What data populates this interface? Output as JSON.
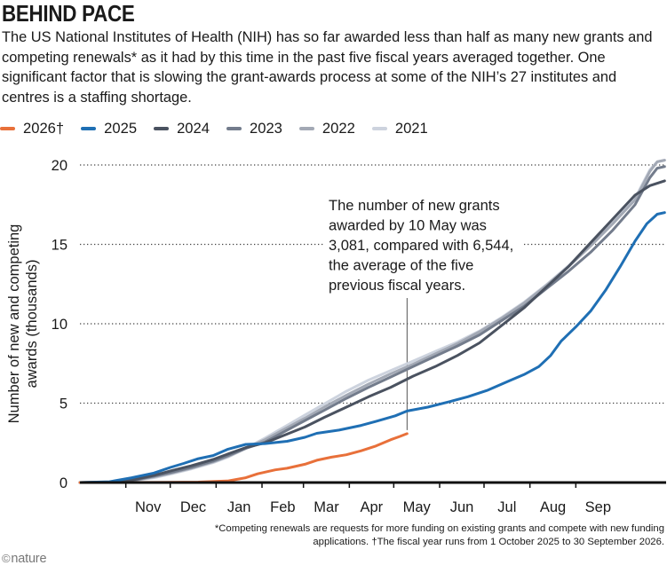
{
  "header": {
    "title": "BEHIND PACE",
    "subtitle": "The US National Institutes of Health (NIH) has so far awarded less than half as many new grants and competing renewals* as it had by this time in the past five fiscal years averaged together. One significant factor that is slowing the grant-awards process at some of the NIH’s 27 institutes and centres is a staffing shortage."
  },
  "footer": {
    "footnote": "*Competing renewals are requests for more funding on existing grants and compete with new funding applications. †The fiscal year runs from 1 October 2025 to 30 September 2026.",
    "logo_symbol": "©",
    "logo_text": "nature"
  },
  "chart_data": {
    "type": "line",
    "title": "BEHIND PACE",
    "ylabel": "Number of new and competing awards (thousands)",
    "xlabel": "",
    "x_tick_labels": [
      "Nov",
      "Dec",
      "Jan",
      "Feb",
      "Mar",
      "Apr",
      "May",
      "Jun",
      "Jul",
      "Aug",
      "Sep"
    ],
    "ylim": [
      0,
      20
    ],
    "y_ticks": [
      0,
      5,
      10,
      15,
      20
    ],
    "grid": "dotted horizontal",
    "legend_position": "top-left",
    "x_note": "x values are days since 1 October of each fiscal year",
    "annotation": {
      "text": "The number of new grants awarded by 10 May was 3,081, compared with 6,544, the average of the five previous fiscal years.",
      "x": 221,
      "y": 3.081
    },
    "series": [
      {
        "name": "2026†",
        "color": "#e8703a",
        "points": [
          [
            0,
            0
          ],
          [
            31,
            0
          ],
          [
            60,
            0.01
          ],
          [
            80,
            0.03
          ],
          [
            100,
            0.1
          ],
          [
            112,
            0.3
          ],
          [
            120,
            0.55
          ],
          [
            132,
            0.8
          ],
          [
            140,
            0.9
          ],
          [
            152,
            1.15
          ],
          [
            160,
            1.4
          ],
          [
            170,
            1.6
          ],
          [
            180,
            1.75
          ],
          [
            190,
            2.0
          ],
          [
            200,
            2.3
          ],
          [
            210,
            2.7
          ],
          [
            216,
            2.9
          ],
          [
            221,
            3.081
          ]
        ]
      },
      {
        "name": "2025",
        "color": "#1f6fb4",
        "points": [
          [
            0,
            0
          ],
          [
            20,
            0.05
          ],
          [
            35,
            0.3
          ],
          [
            50,
            0.6
          ],
          [
            61,
            0.95
          ],
          [
            70,
            1.2
          ],
          [
            80,
            1.5
          ],
          [
            90,
            1.7
          ],
          [
            100,
            2.1
          ],
          [
            112,
            2.4
          ],
          [
            125,
            2.45
          ],
          [
            140,
            2.6
          ],
          [
            152,
            2.85
          ],
          [
            160,
            3.1
          ],
          [
            175,
            3.3
          ],
          [
            190,
            3.6
          ],
          [
            200,
            3.85
          ],
          [
            213,
            4.2
          ],
          [
            221,
            4.5
          ],
          [
            235,
            4.75
          ],
          [
            250,
            5.1
          ],
          [
            262,
            5.4
          ],
          [
            275,
            5.8
          ],
          [
            290,
            6.4
          ],
          [
            300,
            6.8
          ],
          [
            310,
            7.3
          ],
          [
            318,
            8.0
          ],
          [
            325,
            8.9
          ],
          [
            335,
            9.8
          ],
          [
            345,
            10.8
          ],
          [
            355,
            12.1
          ],
          [
            365,
            13.6
          ],
          [
            375,
            15.2
          ],
          [
            383,
            16.3
          ],
          [
            390,
            16.9
          ],
          [
            395,
            17.0
          ]
        ]
      },
      {
        "name": "2024",
        "color": "#4a5260",
        "points": [
          [
            0,
            0
          ],
          [
            20,
            0.02
          ],
          [
            35,
            0.15
          ],
          [
            50,
            0.45
          ],
          [
            62,
            0.75
          ],
          [
            75,
            1.05
          ],
          [
            90,
            1.45
          ],
          [
            100,
            1.8
          ],
          [
            112,
            2.2
          ],
          [
            125,
            2.5
          ],
          [
            140,
            3.05
          ],
          [
            152,
            3.5
          ],
          [
            165,
            4.1
          ],
          [
            180,
            4.75
          ],
          [
            195,
            5.4
          ],
          [
            210,
            6.0
          ],
          [
            225,
            6.7
          ],
          [
            240,
            7.3
          ],
          [
            255,
            8.0
          ],
          [
            270,
            8.8
          ],
          [
            285,
            9.9
          ],
          [
            300,
            11.0
          ],
          [
            315,
            12.3
          ],
          [
            330,
            13.6
          ],
          [
            345,
            15.1
          ],
          [
            360,
            16.6
          ],
          [
            375,
            18.1
          ],
          [
            385,
            18.7
          ],
          [
            395,
            19.0
          ]
        ]
      },
      {
        "name": "2023",
        "color": "#737c8c",
        "points": [
          [
            0,
            0
          ],
          [
            20,
            0.02
          ],
          [
            35,
            0.12
          ],
          [
            50,
            0.4
          ],
          [
            62,
            0.65
          ],
          [
            75,
            0.95
          ],
          [
            90,
            1.35
          ],
          [
            100,
            1.7
          ],
          [
            112,
            2.15
          ],
          [
            125,
            2.55
          ],
          [
            140,
            3.3
          ],
          [
            152,
            3.9
          ],
          [
            165,
            4.55
          ],
          [
            180,
            5.3
          ],
          [
            195,
            6.0
          ],
          [
            210,
            6.65
          ],
          [
            225,
            7.3
          ],
          [
            240,
            7.95
          ],
          [
            255,
            8.6
          ],
          [
            270,
            9.3
          ],
          [
            285,
            10.2
          ],
          [
            300,
            11.1
          ],
          [
            315,
            12.2
          ],
          [
            330,
            13.3
          ],
          [
            345,
            14.5
          ],
          [
            360,
            15.9
          ],
          [
            375,
            17.5
          ],
          [
            385,
            19.2
          ],
          [
            390,
            19.8
          ],
          [
            395,
            19.9
          ]
        ]
      },
      {
        "name": "2022",
        "color": "#a3a9b5",
        "points": [
          [
            0,
            0
          ],
          [
            20,
            0.02
          ],
          [
            35,
            0.1
          ],
          [
            50,
            0.35
          ],
          [
            62,
            0.6
          ],
          [
            75,
            0.9
          ],
          [
            90,
            1.3
          ],
          [
            100,
            1.65
          ],
          [
            112,
            2.15
          ],
          [
            125,
            2.7
          ],
          [
            140,
            3.45
          ],
          [
            152,
            4.05
          ],
          [
            165,
            4.75
          ],
          [
            180,
            5.5
          ],
          [
            195,
            6.2
          ],
          [
            210,
            6.85
          ],
          [
            225,
            7.45
          ],
          [
            240,
            8.1
          ],
          [
            255,
            8.75
          ],
          [
            270,
            9.5
          ],
          [
            285,
            10.35
          ],
          [
            300,
            11.3
          ],
          [
            315,
            12.4
          ],
          [
            330,
            13.6
          ],
          [
            345,
            14.9
          ],
          [
            360,
            16.3
          ],
          [
            375,
            17.8
          ],
          [
            385,
            19.6
          ],
          [
            390,
            20.2
          ],
          [
            395,
            20.3
          ]
        ]
      },
      {
        "name": "2021",
        "color": "#cdd3de",
        "points": [
          [
            0,
            0
          ],
          [
            20,
            0.02
          ],
          [
            35,
            0.1
          ],
          [
            50,
            0.3
          ],
          [
            62,
            0.55
          ],
          [
            75,
            0.85
          ],
          [
            90,
            1.25
          ],
          [
            100,
            1.6
          ],
          [
            112,
            2.15
          ],
          [
            125,
            2.8
          ],
          [
            140,
            3.6
          ],
          [
            152,
            4.25
          ],
          [
            165,
            4.95
          ],
          [
            180,
            5.75
          ],
          [
            195,
            6.45
          ],
          [
            210,
            7.05
          ],
          [
            225,
            7.65
          ],
          [
            240,
            8.25
          ],
          [
            255,
            8.85
          ],
          [
            270,
            9.55
          ],
          [
            285,
            10.4
          ],
          [
            300,
            11.35
          ],
          [
            315,
            12.45
          ],
          [
            330,
            13.65
          ],
          [
            345,
            14.95
          ],
          [
            360,
            16.35
          ],
          [
            375,
            17.9
          ],
          [
            385,
            19.7
          ],
          [
            390,
            20.2
          ],
          [
            395,
            20.3
          ]
        ]
      }
    ]
  }
}
